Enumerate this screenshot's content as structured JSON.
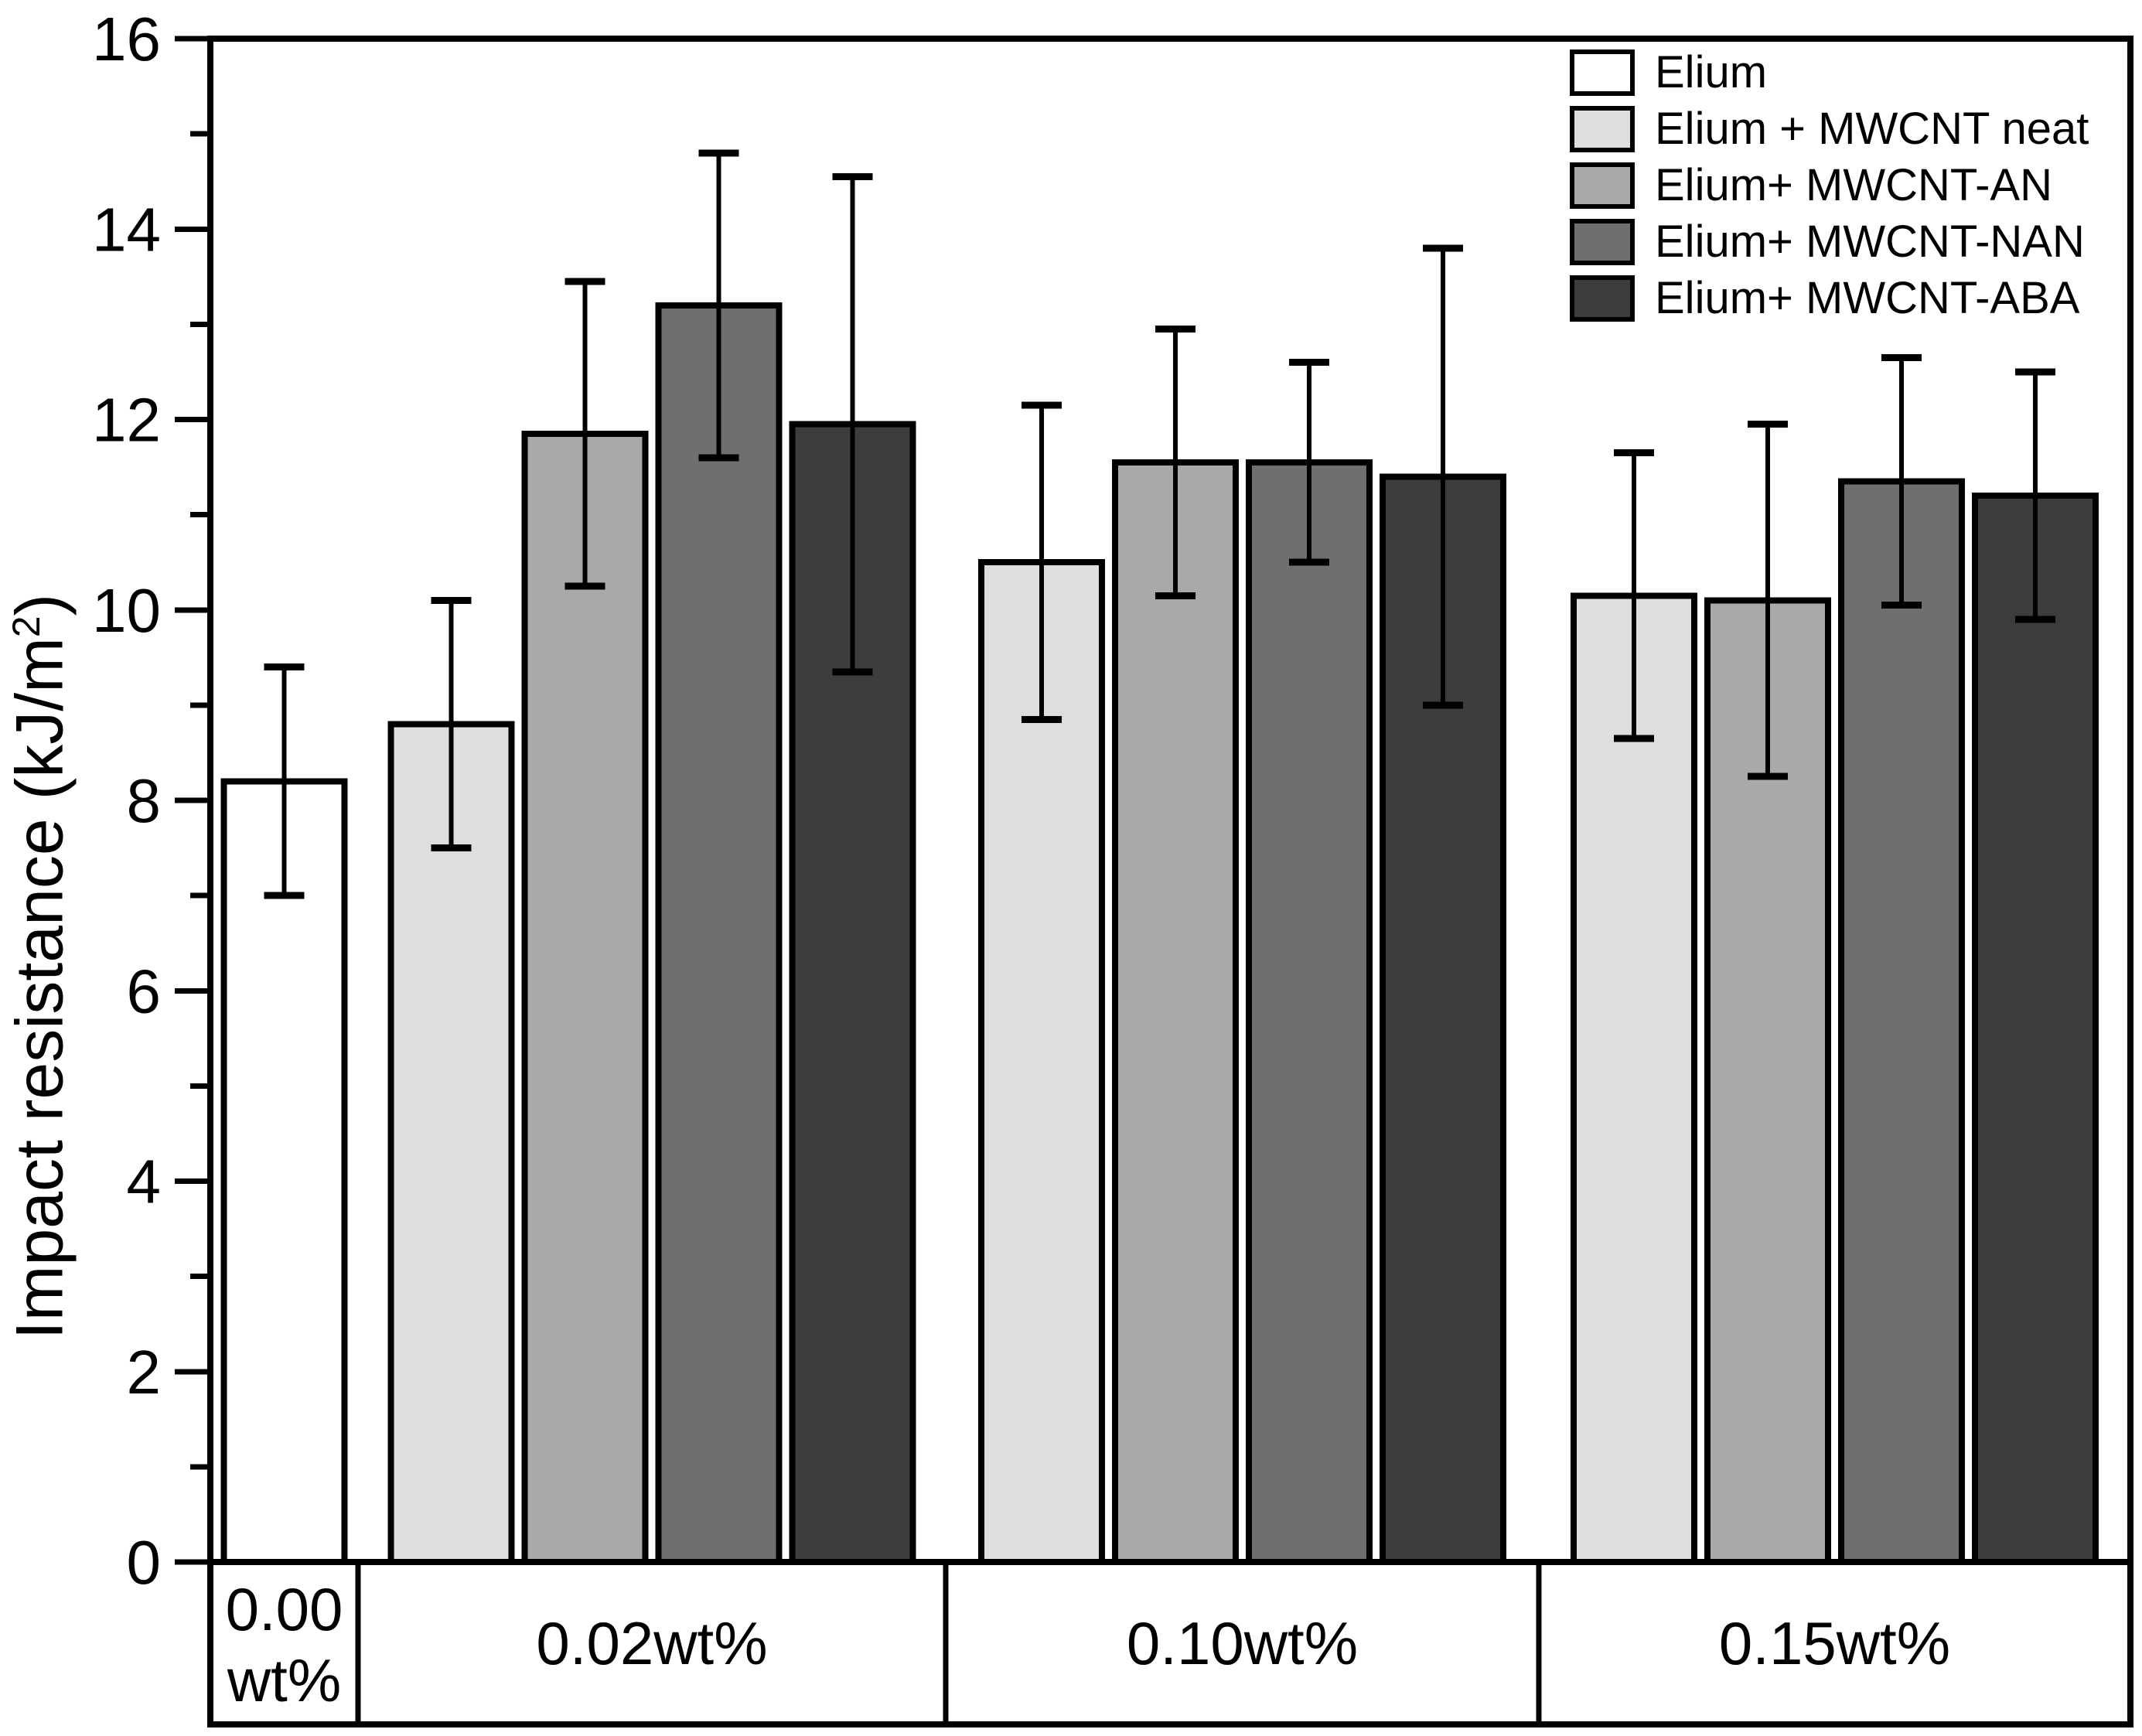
{
  "chart_data": {
    "type": "bar",
    "title": "",
    "xlabel": "",
    "ylabel": "Impact resistance (kJ/m²)",
    "ylabel_parts": {
      "prefix": "Impact resistance (kJ/m",
      "sup": "2",
      "suffix": ")"
    },
    "ylim": [
      0,
      16
    ],
    "yticks": [
      0,
      2,
      4,
      6,
      8,
      10,
      12,
      14,
      16
    ],
    "ytick_minor_step": 1,
    "grid": false,
    "legend_position": "top-right-inside",
    "bar_outline_color": "#000000",
    "error_bar_color": "#000000",
    "series": [
      {
        "name": "Elium",
        "color": "#ffffff"
      },
      {
        "name": "Elium + MWCNT neat",
        "color": "#dedede"
      },
      {
        "name": "Elium+ MWCNT-AN",
        "color": "#a9a9a9"
      },
      {
        "name": "Elium+ MWCNT-NAN",
        "color": "#6f6f6f"
      },
      {
        "name": "Elium+ MWCNT-ABA",
        "color": "#3d3d3d"
      }
    ],
    "groups": [
      {
        "label": "0.00 wt%",
        "label_lines": [
          "0.00",
          "wt%"
        ],
        "bars": [
          {
            "series": "Elium",
            "value": 8.2,
            "error": 1.2
          }
        ]
      },
      {
        "label": "0.02wt%",
        "label_lines": [
          "0.02wt%"
        ],
        "bars": [
          {
            "series": "Elium + MWCNT neat",
            "value": 8.8,
            "error": 1.3
          },
          {
            "series": "Elium+ MWCNT-AN",
            "value": 11.85,
            "error": 1.6
          },
          {
            "series": "Elium+ MWCNT-NAN",
            "value": 13.2,
            "error": 1.6
          },
          {
            "series": "Elium+ MWCNT-ABA",
            "value": 11.95,
            "error": 2.6
          }
        ]
      },
      {
        "label": "0.10wt%",
        "label_lines": [
          "0.10wt%"
        ],
        "bars": [
          {
            "series": "Elium + MWCNT neat",
            "value": 10.5,
            "error": 1.65
          },
          {
            "series": "Elium+ MWCNT-AN",
            "value": 11.55,
            "error": 1.4
          },
          {
            "series": "Elium+ MWCNT-NAN",
            "value": 11.55,
            "error": 1.05
          },
          {
            "series": "Elium+ MWCNT-ABA",
            "value": 11.4,
            "error": 2.4
          }
        ]
      },
      {
        "label": "0.15wt%",
        "label_lines": [
          "0.15wt%"
        ],
        "bars": [
          {
            "series": "Elium + MWCNT neat",
            "value": 10.15,
            "error": 1.5
          },
          {
            "series": "Elium+ MWCNT-AN",
            "value": 10.1,
            "error": 1.85
          },
          {
            "series": "Elium+ MWCNT-NAN",
            "value": 11.35,
            "error": 1.3
          },
          {
            "series": "Elium+ MWCNT-ABA",
            "value": 11.2,
            "error": 1.3
          }
        ]
      }
    ]
  }
}
